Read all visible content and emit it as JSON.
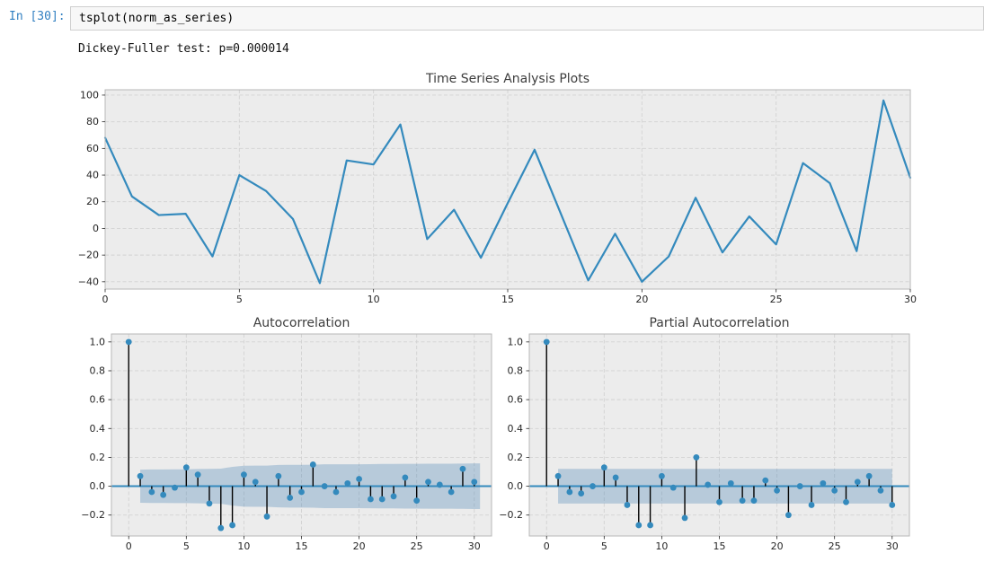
{
  "notebook": {
    "prompt": "In [30]:",
    "code": "tsplot(norm_as_series)",
    "output_text": "Dickey-Fuller test: p=0.000014"
  },
  "colors": {
    "accent_blue": "#348ABD",
    "stem_black": "#000000",
    "band_blue": "rgba(70,130,180,0.32)",
    "axes_bg": "#ececec",
    "grid": "#d2d2d2",
    "spine": "#b7b7b7",
    "tick_label": "#262626",
    "title_text": "#3d3d3d",
    "prompt_blue": "#307fc1",
    "input_bg": "#f7f7f7",
    "input_border": "#cfcfcf"
  },
  "chart_data": [
    {
      "type": "line",
      "title": "Time Series Analysis Plots",
      "x": [
        0,
        1,
        2,
        3,
        4,
        5,
        6,
        7,
        8,
        9,
        10,
        11,
        12,
        13,
        14,
        15,
        16,
        17,
        18,
        19,
        20,
        21,
        22,
        23,
        24,
        25,
        26,
        27,
        28,
        29,
        30
      ],
      "values": [
        68,
        24,
        10,
        11,
        -21,
        40,
        28,
        7,
        -41,
        51,
        48,
        78,
        -8,
        14,
        -22,
        19,
        59,
        10,
        -39,
        -4,
        -40,
        -21,
        23,
        -18,
        9,
        -12,
        49,
        34,
        -17,
        96,
        38
      ],
      "xticks": [
        0,
        5,
        10,
        15,
        20,
        25,
        30
      ],
      "yticks": [
        100,
        80,
        60,
        40,
        20,
        0,
        -20,
        -40
      ],
      "xlim": [
        0,
        30
      ],
      "ylim": [
        -45.5,
        104
      ],
      "grid": true,
      "legend": "none",
      "ytick_decimals": 0
    },
    {
      "type": "stem",
      "title": "Autocorrelation",
      "lags": [
        0,
        1,
        2,
        3,
        4,
        5,
        6,
        7,
        8,
        9,
        10,
        11,
        12,
        13,
        14,
        15,
        16,
        17,
        18,
        19,
        20,
        21,
        22,
        23,
        24,
        25,
        26,
        27,
        28,
        29,
        30
      ],
      "values": [
        1.0,
        0.07,
        -0.04,
        -0.06,
        -0.01,
        0.13,
        0.08,
        -0.12,
        -0.29,
        -0.27,
        0.08,
        0.03,
        -0.21,
        0.07,
        -0.08,
        -0.04,
        0.15,
        0.0,
        -0.04,
        0.02,
        0.05,
        -0.09,
        -0.09,
        -0.07,
        0.06,
        -0.1,
        0.03,
        0.01,
        -0.04,
        0.12,
        0.03
      ],
      "confidence_band": {
        "lag_start": 1,
        "lag_end": 30.5,
        "upper": [
          0.115,
          0.116,
          0.116,
          0.117,
          0.117,
          0.119,
          0.12,
          0.122,
          0.134,
          0.142,
          0.143,
          0.143,
          0.147,
          0.148,
          0.148,
          0.149,
          0.152,
          0.152,
          0.152,
          0.152,
          0.153,
          0.154,
          0.154,
          0.155,
          0.155,
          0.156,
          0.156,
          0.156,
          0.157,
          0.158
        ]
      },
      "xticks": [
        0,
        5,
        10,
        15,
        20,
        25,
        30
      ],
      "yticks": [
        1.0,
        0.8,
        0.6,
        0.4,
        0.2,
        0.0,
        -0.2
      ],
      "xlim": [
        -1.5,
        31.5
      ],
      "ylim": [
        -0.345,
        1.055
      ],
      "grid": true,
      "legend": "none",
      "ytick_decimals": 1
    },
    {
      "type": "stem",
      "title": "Partial Autocorrelation",
      "lags": [
        0,
        1,
        2,
        3,
        4,
        5,
        6,
        7,
        8,
        9,
        10,
        11,
        12,
        13,
        14,
        15,
        16,
        17,
        18,
        19,
        20,
        21,
        22,
        23,
        24,
        25,
        26,
        27,
        28,
        29,
        30
      ],
      "values": [
        1.0,
        0.07,
        -0.04,
        -0.05,
        0.0,
        0.13,
        0.06,
        -0.13,
        -0.27,
        -0.27,
        0.07,
        -0.01,
        -0.22,
        0.2,
        0.01,
        -0.11,
        0.02,
        -0.1,
        -0.1,
        0.04,
        -0.03,
        -0.2,
        0.0,
        -0.13,
        0.02,
        -0.03,
        -0.11,
        0.03,
        0.07,
        -0.03,
        -0.13
      ],
      "confidence_band": {
        "lag_start": 1,
        "lag_end": 30,
        "value": 0.12
      },
      "xticks": [
        0,
        5,
        10,
        15,
        20,
        25,
        30
      ],
      "yticks": [
        1.0,
        0.8,
        0.6,
        0.4,
        0.2,
        0.0,
        -0.2
      ],
      "xlim": [
        -1.5,
        31.5
      ],
      "ylim": [
        -0.345,
        1.055
      ],
      "grid": true,
      "legend": "none",
      "ytick_decimals": 1
    }
  ]
}
